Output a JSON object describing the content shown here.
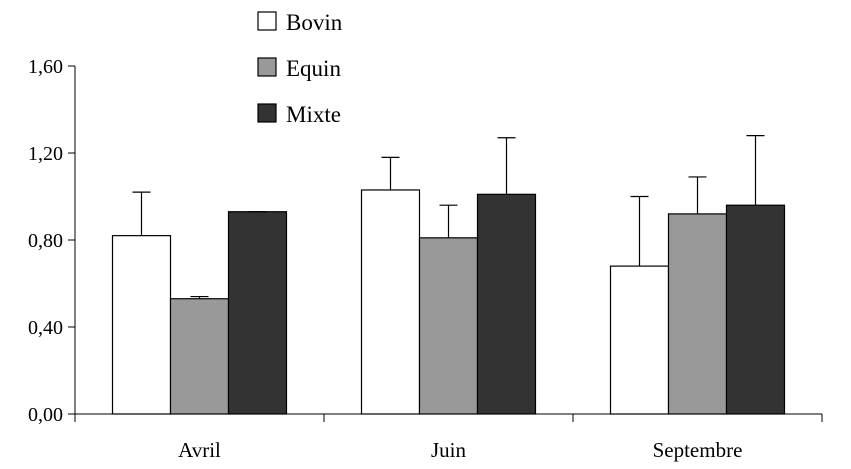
{
  "chart_data": {
    "type": "bar",
    "categories": [
      "Avril",
      "Juin",
      "Septembre"
    ],
    "series": [
      {
        "name": "Bovin",
        "color": "#ffffff",
        "values": [
          0.82,
          1.03,
          0.68
        ],
        "errors": [
          0.2,
          0.15,
          0.32
        ]
      },
      {
        "name": "Equin",
        "color": "#999999",
        "values": [
          0.53,
          0.81,
          0.92
        ],
        "errors": [
          0.01,
          0.15,
          0.17
        ]
      },
      {
        "name": "Mixte",
        "color": "#333333",
        "values": [
          0.93,
          1.01,
          0.96
        ],
        "errors": [
          0.0,
          0.26,
          0.32
        ]
      }
    ],
    "y_ticks": [
      "0,00",
      "0,40",
      "0,80",
      "1,20",
      "1,60"
    ],
    "y_tick_values": [
      0,
      0.4,
      0.8,
      1.2,
      1.6
    ],
    "ylim": [
      0,
      1.6
    ],
    "grid": false,
    "legend_position": "top"
  }
}
